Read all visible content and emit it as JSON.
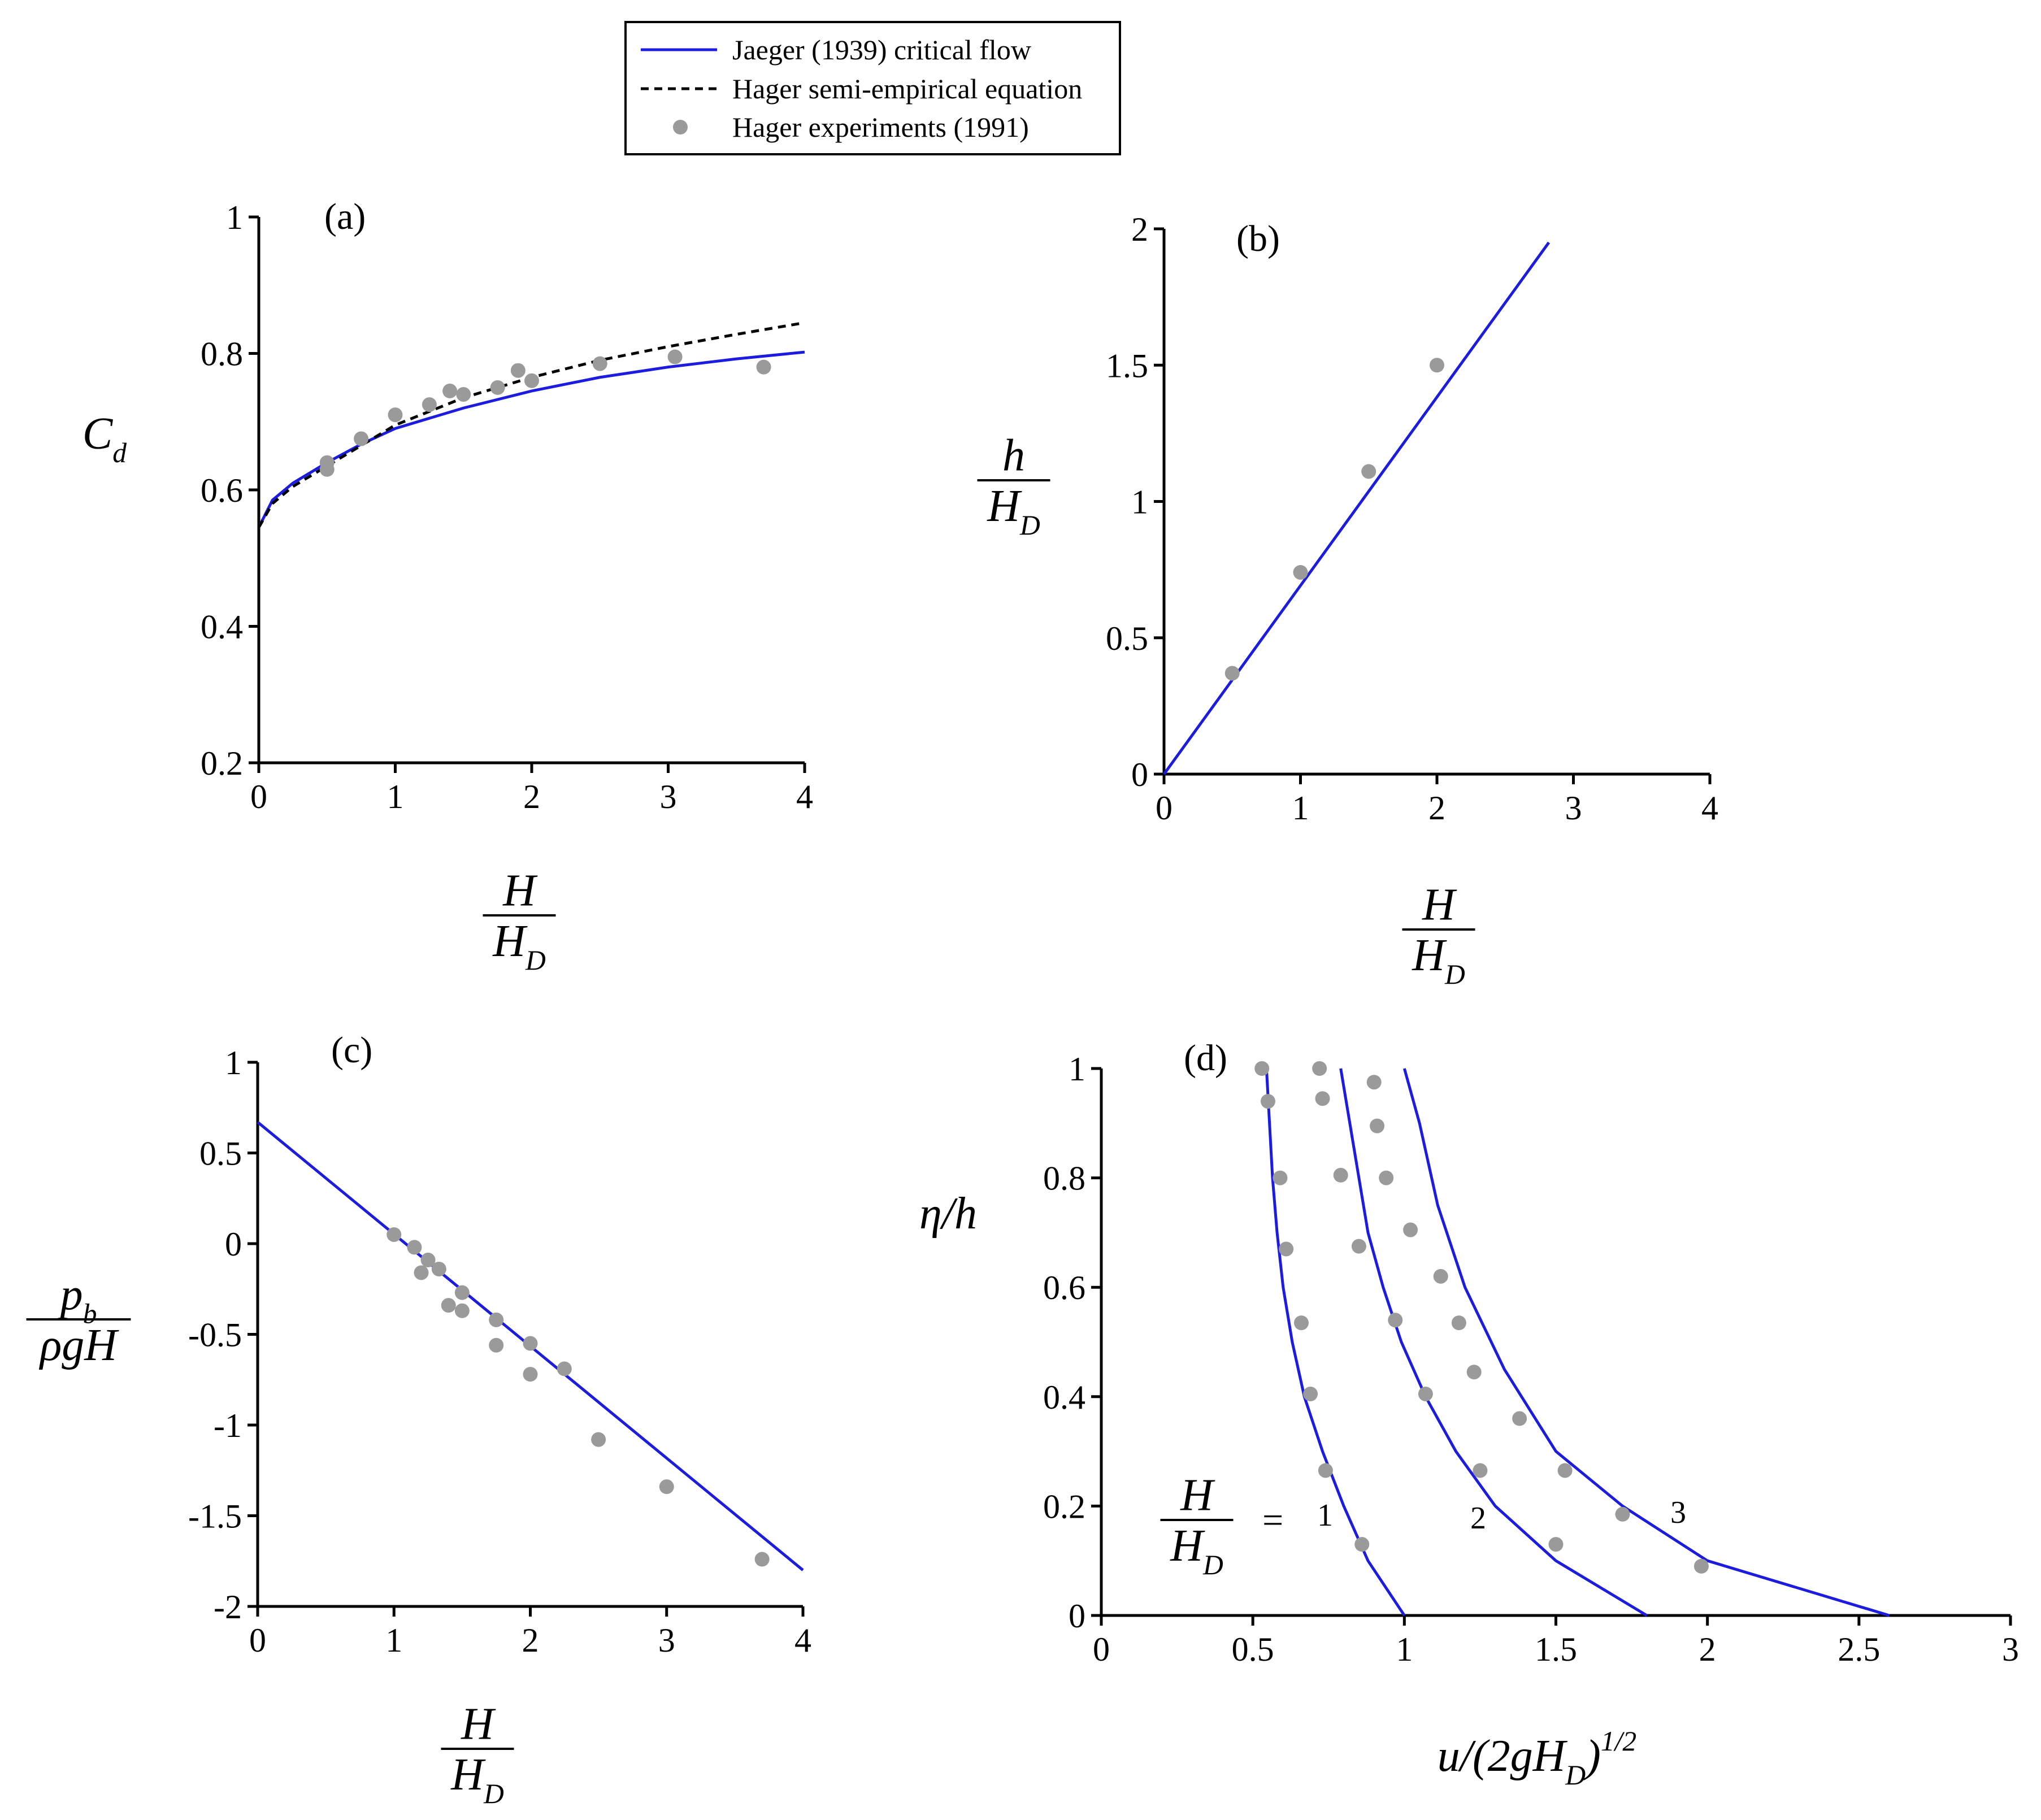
{
  "chart_data": [
    {
      "type": "line",
      "title": "(a)",
      "xlabel": {
        "num": [
          {
            "text": "H"
          }
        ],
        "den": [
          {
            "text": "H"
          },
          {
            "text": "D",
            "pos": "sub"
          }
        ]
      },
      "ylabel": [
        {
          "text": "C"
        },
        {
          "text": "d",
          "pos": "sub"
        }
      ],
      "xlim": [
        0,
        4
      ],
      "xticks": [
        0,
        1,
        2,
        3,
        4
      ],
      "ylim": [
        0.2,
        1
      ],
      "yticks": [
        0.2,
        0.4,
        0.6,
        0.8,
        1
      ],
      "series": [
        {
          "name": "Jaeger (1939) critical flow",
          "kind": "line",
          "style": "solid",
          "color": "#1c1ce0",
          "x": [
            0,
            0.1,
            0.25,
            0.5,
            0.75,
            1,
            1.5,
            2,
            2.5,
            3,
            3.5,
            4
          ],
          "values": [
            0.545,
            0.585,
            0.61,
            0.64,
            0.667,
            0.69,
            0.72,
            0.745,
            0.765,
            0.78,
            0.792,
            0.802
          ]
        },
        {
          "name": "Hager semi-empirical equation",
          "kind": "line",
          "style": "dashed",
          "color": "#000000",
          "x": [
            0,
            0.1,
            0.25,
            0.5,
            0.75,
            1,
            1.5,
            2,
            2.5,
            3,
            3.5,
            4
          ],
          "values": [
            0.545,
            0.58,
            0.605,
            0.635,
            0.665,
            0.695,
            0.735,
            0.765,
            0.79,
            0.81,
            0.828,
            0.845
          ]
        },
        {
          "name": "Hager experiments (1991)",
          "kind": "scatter",
          "color": "#9a9a9a",
          "x": [
            0.5,
            0.5,
            0.75,
            1,
            1.25,
            1.4,
            1.5,
            1.75,
            1.9,
            2,
            2.5,
            3.05,
            3.7
          ],
          "values": [
            0.63,
            0.64,
            0.675,
            0.71,
            0.725,
            0.745,
            0.74,
            0.75,
            0.775,
            0.76,
            0.785,
            0.795,
            0.78
          ]
        }
      ]
    },
    {
      "type": "line",
      "title": "(b)",
      "xlabel": {
        "num": [
          {
            "text": "H"
          }
        ],
        "den": [
          {
            "text": "H"
          },
          {
            "text": "D",
            "pos": "sub"
          }
        ]
      },
      "ylabel": {
        "num": [
          {
            "text": "h"
          }
        ],
        "den": [
          {
            "text": "H"
          },
          {
            "text": "D",
            "pos": "sub"
          }
        ]
      },
      "xlim": [
        0,
        4
      ],
      "xticks": [
        0,
        1,
        2,
        3,
        4
      ],
      "ylim": [
        0,
        2
      ],
      "yticks": [
        0,
        0.5,
        1,
        1.5,
        2
      ],
      "series": [
        {
          "kind": "line",
          "style": "solid",
          "color": "#1c1ce0",
          "x": [
            0,
            2.82
          ],
          "values": [
            0,
            1.95
          ]
        },
        {
          "kind": "scatter",
          "color": "#9a9a9a",
          "x": [
            0.5,
            1,
            1.5,
            2
          ],
          "values": [
            0.37,
            0.74,
            1.11,
            1.5
          ]
        }
      ]
    },
    {
      "type": "line",
      "title": "(c)",
      "xlabel": {
        "num": [
          {
            "text": "H"
          }
        ],
        "den": [
          {
            "text": "H"
          },
          {
            "text": "D",
            "pos": "sub"
          }
        ]
      },
      "ylabel": {
        "num": [
          {
            "text": "p"
          },
          {
            "text": "b",
            "pos": "sub"
          }
        ],
        "den": [
          {
            "text": "ρgH"
          }
        ]
      },
      "xlim": [
        0,
        4
      ],
      "xticks": [
        0,
        1,
        2,
        3,
        4
      ],
      "ylim": [
        -2,
        1
      ],
      "yticks": [
        -2,
        -1.5,
        -1,
        -0.5,
        0,
        0.5,
        1
      ],
      "series": [
        {
          "kind": "line",
          "style": "solid",
          "color": "#1c1ce0",
          "x": [
            0,
            4
          ],
          "values": [
            0.67,
            -1.8
          ]
        },
        {
          "kind": "scatter",
          "color": "#9a9a9a",
          "x": [
            1,
            1.15,
            1.2,
            1.25,
            1.33,
            1.4,
            1.5,
            1.5,
            1.75,
            1.75,
            2,
            2,
            2.25,
            2.5,
            3,
            3.7
          ],
          "values": [
            0.05,
            -0.02,
            -0.16,
            -0.09,
            -0.14,
            -0.34,
            -0.27,
            -0.37,
            -0.42,
            -0.56,
            -0.55,
            -0.72,
            -0.69,
            -1.08,
            -1.34,
            -1.74
          ]
        }
      ]
    },
    {
      "type": "line",
      "title": "(d)",
      "xlabel": [
        {
          "text": "u/(2gH"
        },
        {
          "text": "D",
          "pos": "sub"
        },
        {
          "text": ")"
        },
        {
          "text": "1/2",
          "pos": "sup"
        }
      ],
      "ylabel": [
        {
          "text": "η/h"
        }
      ],
      "annotation": {
        "num": [
          {
            "text": "H"
          }
        ],
        "den": [
          {
            "text": "H"
          },
          {
            "text": "D",
            "pos": "sub"
          }
        ],
        "rel": "="
      },
      "xlim": [
        0,
        3
      ],
      "xticks": [
        0,
        0.5,
        1,
        1.5,
        2,
        2.5,
        3
      ],
      "ylim": [
        0,
        1
      ],
      "yticks": [
        0,
        0.2,
        0.4,
        0.6,
        0.8,
        1
      ],
      "series": [
        {
          "label": "1",
          "kind": "line",
          "style": "solid",
          "color": "#1c1ce0",
          "x": [
            1.0,
            0.88,
            0.8,
            0.73,
            0.67,
            0.63,
            0.6,
            0.58,
            0.565,
            0.555,
            0.545
          ],
          "values": [
            0,
            0.1,
            0.2,
            0.3,
            0.4,
            0.5,
            0.6,
            0.7,
            0.8,
            0.9,
            1.0
          ]
        },
        {
          "label": "2",
          "kind": "line",
          "style": "solid",
          "color": "#1c1ce0",
          "x": [
            1.8,
            1.5,
            1.3,
            1.17,
            1.07,
            0.99,
            0.93,
            0.88,
            0.85,
            0.82,
            0.79
          ],
          "values": [
            0,
            0.1,
            0.2,
            0.3,
            0.4,
            0.5,
            0.6,
            0.7,
            0.8,
            0.9,
            1.0
          ]
        },
        {
          "label": "3",
          "kind": "line",
          "style": "solid",
          "color": "#1c1ce0",
          "x": [
            2.6,
            2.0,
            1.72,
            1.5,
            1.33,
            1.2,
            1.11,
            1.05,
            1.0
          ],
          "values": [
            0,
            0.1,
            0.2,
            0.3,
            0.45,
            0.6,
            0.75,
            0.9,
            1.0
          ]
        },
        {
          "kind": "scatter",
          "color": "#9a9a9a",
          "x": [
            0.53,
            0.55,
            0.59,
            0.61,
            0.66,
            0.69,
            0.74,
            0.86
          ],
          "values": [
            1.0,
            0.94,
            0.8,
            0.67,
            0.535,
            0.405,
            0.265,
            0.13
          ]
        },
        {
          "kind": "scatter",
          "color": "#9a9a9a",
          "x": [
            0.72,
            0.73,
            0.79,
            0.85,
            0.97,
            1.07,
            1.25,
            1.5
          ],
          "values": [
            1.0,
            0.945,
            0.805,
            0.675,
            0.54,
            0.405,
            0.265,
            0.13
          ]
        },
        {
          "kind": "scatter",
          "color": "#9a9a9a",
          "x": [
            0.9,
            0.91,
            0.94,
            1.02,
            1.12,
            1.18,
            1.23,
            1.38,
            1.53,
            1.72,
            1.98
          ],
          "values": [
            0.975,
            0.895,
            0.8,
            0.705,
            0.62,
            0.535,
            0.445,
            0.36,
            0.265,
            0.185,
            0.09
          ]
        }
      ]
    }
  ]
}
